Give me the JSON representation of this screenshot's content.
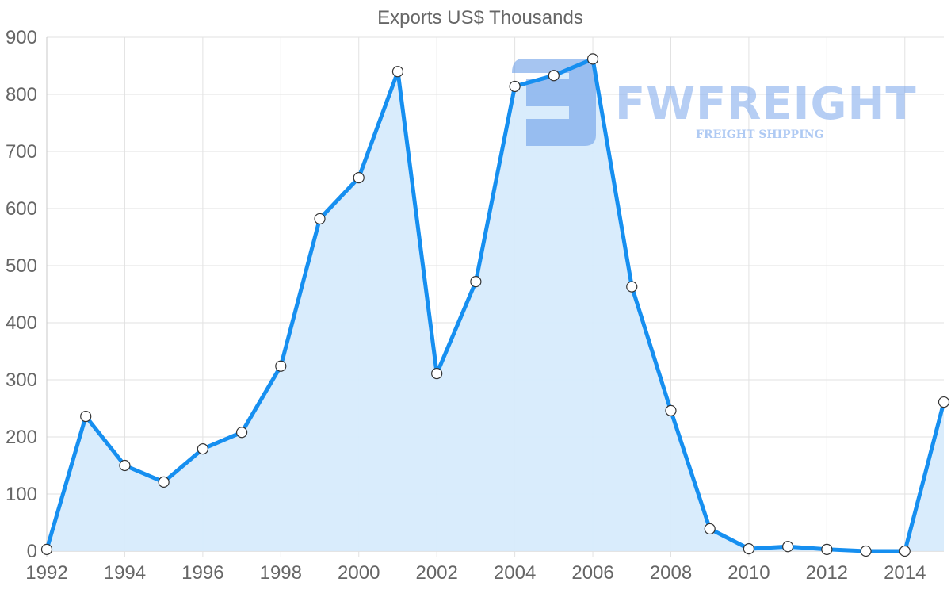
{
  "chart_data": {
    "type": "area",
    "title": "Exports US$ Thousands",
    "xlabel": "",
    "ylabel": "",
    "x": [
      1992,
      1993,
      1994,
      1995,
      1996,
      1997,
      1998,
      1999,
      2000,
      2001,
      2002,
      2003,
      2004,
      2005,
      2006,
      2007,
      2008,
      2009,
      2010,
      2011,
      2012,
      2013,
      2014,
      2015
    ],
    "series": [
      {
        "name": "Exports US$ Thousands",
        "values": [
          3,
          236,
          150,
          121,
          179,
          208,
          324,
          582,
          654,
          840,
          311,
          472,
          814,
          833,
          862,
          463,
          246,
          39,
          4,
          8,
          3,
          0,
          0,
          261
        ]
      }
    ],
    "xticks": [
      "1992",
      "1994",
      "1996",
      "1998",
      "2000",
      "2002",
      "2004",
      "2006",
      "2008",
      "2010",
      "2012",
      "2014"
    ],
    "yticks": [
      "0",
      "100",
      "200",
      "300",
      "400",
      "500",
      "600",
      "700",
      "800",
      "900"
    ],
    "ylim": [
      0,
      900
    ],
    "xlim": [
      1992,
      2015
    ],
    "grid": true,
    "legend": "none",
    "colors": {
      "line": "#168ff0",
      "fill": "#d7ebfc",
      "point_fill": "#ffffff",
      "point_stroke": "#333333",
      "grid": "#e2e2e2",
      "text": "#666666"
    }
  },
  "watermark": {
    "brand": "FWFREIGHT",
    "tagline": "FREIGHT SHIPPING",
    "logo_icon": "fw-logo-icon"
  }
}
